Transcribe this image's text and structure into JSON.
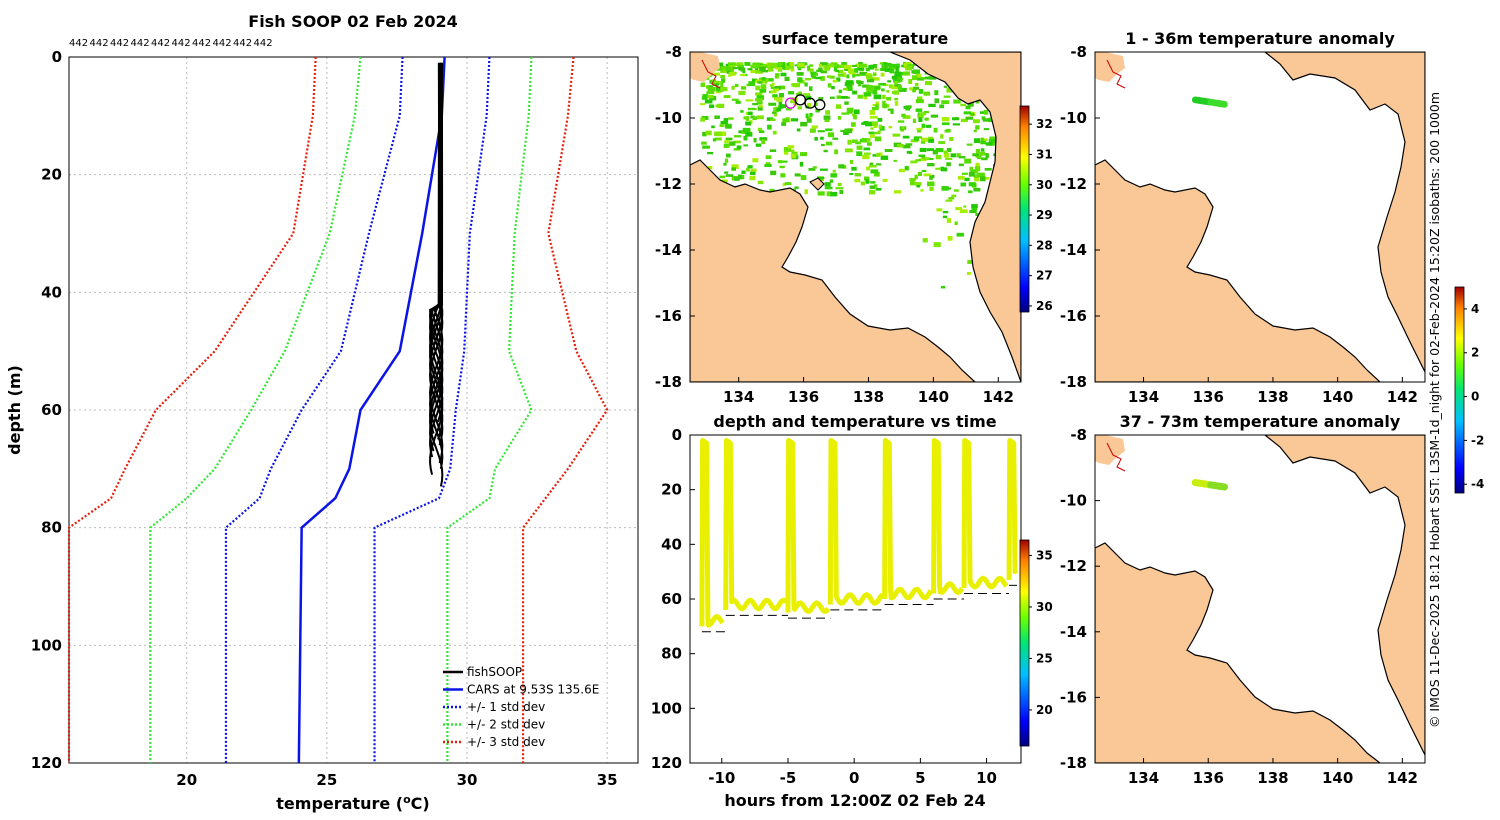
{
  "chart_data": [
    {
      "type": "line",
      "id": "profile",
      "title": "Fish SOOP 02 Feb 2024",
      "xlabel": "temperature (",
      "xlabel_sup": "o",
      "xlabel_tail": "C)",
      "ylabel": "depth (m)",
      "xlim": [
        15.8,
        36.1
      ],
      "ylim": [
        0,
        120
      ],
      "xticks": [
        20,
        25,
        30,
        35
      ],
      "yticks": [
        0,
        20,
        40,
        60,
        80,
        100,
        120
      ],
      "count_labels": [
        "442",
        "442",
        "442",
        "442",
        "442",
        "442",
        "442",
        "442",
        "442",
        "442"
      ],
      "legend": [
        "fishSOOP",
        "CARS at 9.53S 135.6E",
        "+/- 1 std dev",
        "+/- 2 std dev",
        "+/- 3 std dev"
      ],
      "colors": {
        "fish": "#000000",
        "cars": "#0a14e6",
        "std1": "#0a14e6",
        "std2": "#33e633",
        "std3": "#e61e0a"
      },
      "depths": [
        0,
        10,
        30,
        50,
        60,
        70,
        75,
        80,
        120
      ],
      "cars": [
        29.2,
        29.1,
        28.4,
        27.6,
        26.2,
        25.8,
        25.3,
        24.1,
        24.0
      ],
      "std1_plus": [
        30.8,
        30.7,
        30.1,
        29.9,
        29.6,
        29.4,
        29.0,
        26.7,
        26.7
      ],
      "std1_minus": [
        27.7,
        27.6,
        26.5,
        25.5,
        24.1,
        23.0,
        22.6,
        21.4,
        21.4
      ],
      "std2_plus": [
        32.3,
        32.2,
        31.7,
        31.5,
        32.3,
        31.0,
        30.8,
        29.3,
        29.3
      ],
      "std2_minus": [
        26.2,
        26.0,
        25.1,
        23.5,
        22.3,
        21.0,
        20.0,
        18.7,
        18.7
      ],
      "std3_plus": [
        33.8,
        33.6,
        32.9,
        33.9,
        35.0,
        33.6,
        32.8,
        32.0,
        32.0
      ],
      "std3_minus": [
        24.6,
        24.5,
        23.8,
        21.0,
        18.9,
        17.8,
        17.3,
        15.8,
        15.8
      ]
    },
    {
      "type": "scatter",
      "id": "sst_map",
      "title": "surface temperature",
      "xlim": [
        132.5,
        142.7
      ],
      "ylim": [
        -18,
        -8
      ],
      "xticks": [
        134,
        136,
        138,
        140,
        142
      ],
      "yticks": [
        -8,
        -10,
        -12,
        -14,
        -16,
        -18
      ],
      "colorbar": {
        "min": 25.8,
        "max": 32.6,
        "ticks": [
          26,
          27,
          28,
          29,
          30,
          31,
          32
        ]
      },
      "track": [
        [
          135.6,
          -9.55
        ],
        [
          135.9,
          -9.45
        ],
        [
          136.2,
          -9.55
        ],
        [
          136.5,
          -9.6
        ]
      ]
    },
    {
      "type": "scatter",
      "id": "anom_shallow",
      "title": "1 - 36m temperature anomaly",
      "xlim": [
        132.5,
        142.7
      ],
      "ylim": [
        -18,
        -8
      ],
      "xticks": [
        134,
        136,
        138,
        140,
        142
      ],
      "yticks": [
        -8,
        -10,
        -12,
        -14,
        -16,
        -18
      ]
    },
    {
      "type": "scatter",
      "id": "anom_deep",
      "title": "37 - 73m temperature anomaly",
      "xlim": [
        132.5,
        142.7
      ],
      "ylim": [
        -18,
        -8
      ],
      "xticks": [
        134,
        136,
        138,
        140,
        142
      ],
      "yticks": [
        -8,
        -10,
        -12,
        -14,
        -16,
        -18
      ],
      "colorbar": {
        "min": -4.4,
        "max": 5.0,
        "ticks": [
          -4,
          -2,
          0,
          2,
          4
        ]
      }
    },
    {
      "type": "scatter",
      "id": "depth_time",
      "title": "depth and temperature vs time",
      "xlabel": "hours from 12:00Z 02 Feb 24",
      "xlim": [
        -12.4,
        12.6
      ],
      "ylim": [
        0,
        120
      ],
      "xticks": [
        -10,
        -5,
        0,
        5,
        10
      ],
      "yticks": [
        0,
        20,
        40,
        60,
        80,
        100,
        120
      ],
      "colorbar": {
        "min": 16.5,
        "max": 36.5,
        "ticks": [
          20,
          25,
          30,
          35
        ]
      },
      "profile_hours": [
        -11.5,
        -9.7,
        -5.0,
        -1.8,
        2.3,
        6.0,
        8.3,
        11.7
      ],
      "bottom_depths": [
        72,
        66,
        67,
        64,
        62,
        60,
        58,
        55
      ]
    }
  ],
  "side_note": "© IMOS 11-Dec-2025 18:12 Hobart SST: L3SM-1d_night for 02-Feb-2024 15:20Z isobaths: 200  1000m"
}
